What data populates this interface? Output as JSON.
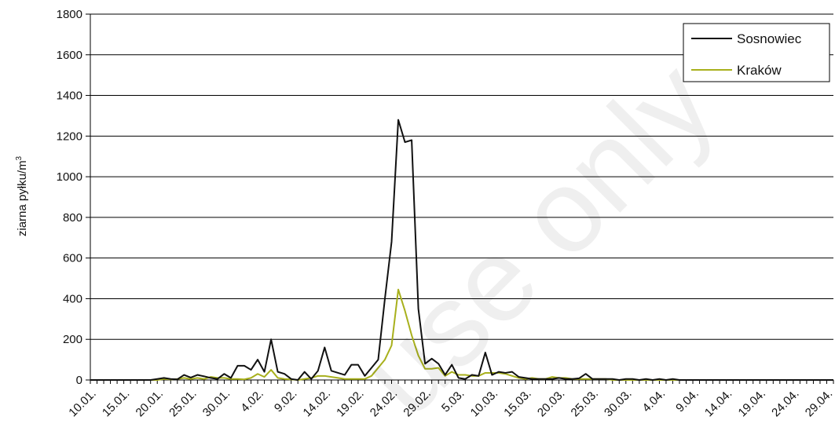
{
  "chart_data": {
    "type": "line",
    "title": "",
    "xlabel": "",
    "ylabel": "ziarna pyłku/m",
    "ylabel_sup": "3",
    "ylim": [
      0,
      1800
    ],
    "yticks": [
      0,
      200,
      400,
      600,
      800,
      1000,
      1200,
      1400,
      1600,
      1800
    ],
    "x_start": "10.01.",
    "x_end": "30.04.",
    "xtick_labels": [
      "10.01.",
      "15.01.",
      "20.01.",
      "25.01.",
      "30.01.",
      "4.02.",
      "9.02.",
      "14.02.",
      "19.02.",
      "24.02.",
      "29.02.",
      "5.03.",
      "10.03.",
      "15.03.",
      "20.03.",
      "25.03.",
      "30.03.",
      "4.04.",
      "9.04.",
      "14.04.",
      "19.04.",
      "24.04.",
      "29.04."
    ],
    "grid": true,
    "legend_position": "top-right",
    "series": [
      {
        "name": "Sosnowiec",
        "color": "#111111",
        "values": [
          0,
          0,
          0,
          0,
          0,
          0,
          0,
          0,
          0,
          0,
          5,
          10,
          5,
          3,
          25,
          12,
          25,
          18,
          10,
          5,
          30,
          10,
          70,
          70,
          50,
          100,
          40,
          200,
          40,
          30,
          5,
          0,
          40,
          5,
          45,
          160,
          45,
          35,
          25,
          75,
          75,
          20,
          60,
          100,
          400,
          680,
          1280,
          1170,
          1180,
          350,
          80,
          105,
          80,
          25,
          75,
          10,
          5,
          25,
          20,
          135,
          25,
          40,
          35,
          40,
          15,
          10,
          5,
          5,
          5,
          5,
          10,
          5,
          5,
          8,
          30,
          5,
          5,
          5,
          5,
          0,
          5,
          5,
          0,
          5,
          0,
          5,
          0,
          5,
          0,
          0,
          0,
          0,
          0,
          0,
          0,
          0,
          0,
          0,
          0,
          0,
          0,
          0,
          0,
          0,
          0,
          0,
          0,
          0,
          0,
          0,
          0,
          0
        ]
      },
      {
        "name": "Kraków",
        "color": "#a8b01c",
        "values": [
          0,
          0,
          0,
          0,
          0,
          0,
          0,
          0,
          0,
          0,
          0,
          5,
          3,
          5,
          10,
          5,
          10,
          5,
          15,
          10,
          10,
          5,
          5,
          3,
          10,
          30,
          15,
          50,
          10,
          5,
          3,
          0,
          5,
          10,
          20,
          20,
          15,
          10,
          5,
          5,
          5,
          5,
          20,
          60,
          100,
          170,
          445,
          340,
          220,
          120,
          55,
          55,
          60,
          20,
          40,
          25,
          25,
          20,
          20,
          35,
          35,
          35,
          30,
          20,
          10,
          5,
          10,
          5,
          5,
          15,
          10,
          10,
          5,
          5,
          5,
          5,
          5,
          5,
          0,
          0,
          0,
          0,
          0,
          0,
          0,
          0,
          0,
          0,
          0,
          0,
          0,
          0,
          0,
          0,
          0,
          0,
          0,
          0,
          0,
          0,
          0,
          0,
          0,
          0,
          0,
          0,
          0,
          0,
          0,
          0,
          0,
          0
        ]
      }
    ]
  },
  "watermark": "use only"
}
